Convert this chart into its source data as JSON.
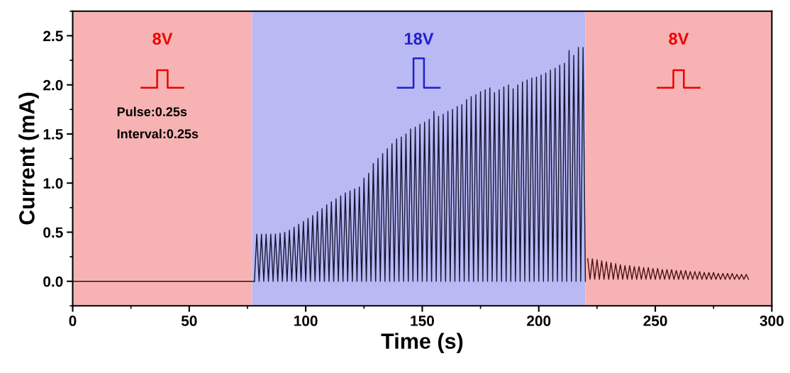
{
  "chart_data": {
    "type": "line",
    "xlabel": "Time (s)",
    "ylabel": "Current (mA)",
    "xlim": [
      0,
      300
    ],
    "xticks": [
      0,
      50,
      100,
      150,
      200,
      250,
      300
    ],
    "ylim": [
      -0.25,
      2.75
    ],
    "yticks": [
      {
        "value": 0,
        "label": "0.0"
      },
      0.5,
      {
        "value": 1,
        "label": "1.0"
      },
      1.5,
      {
        "value": 2,
        "label": "2.0"
      },
      2.5
    ],
    "grid": false,
    "legend": false,
    "marker": "none",
    "line_style": "solid",
    "bands": [
      {
        "axis": "x",
        "from": 0,
        "to": 77,
        "label": "8V",
        "color": "#f7b3b3"
      },
      {
        "axis": "x",
        "from": 77,
        "to": 220,
        "label": "18V",
        "color": "#b9b9f4"
      },
      {
        "axis": "x",
        "from": 220,
        "to": 300,
        "label": "8V",
        "color": "#f7b3b3"
      }
    ],
    "annotations": [
      "Pulse:0.25s",
      "Interval:0.25s"
    ],
    "series": [
      {
        "color": "#1a1a1a",
        "x": [
          0,
          78
        ],
        "values": [
          0,
          0
        ]
      },
      {
        "color": "#141432",
        "x": [
          78,
          79,
          80,
          81,
          82,
          83,
          84,
          85,
          86,
          87,
          88,
          89,
          90,
          91,
          92,
          93,
          94,
          95,
          96,
          97,
          98,
          99,
          100,
          101,
          102,
          103,
          104,
          105,
          106,
          107,
          108,
          109,
          110,
          111,
          112,
          113,
          114,
          115,
          116,
          117,
          118,
          119,
          120,
          121,
          122,
          123,
          124,
          125,
          126,
          127,
          128,
          129,
          130,
          131,
          132,
          133,
          134,
          135,
          136,
          137,
          138,
          139,
          140,
          141,
          142,
          143,
          144,
          145,
          146,
          147,
          148,
          149,
          150,
          151,
          152,
          153,
          154,
          155,
          156,
          157,
          158,
          159,
          160,
          161,
          162,
          163,
          164,
          165,
          166,
          167,
          168,
          169,
          170,
          171,
          172,
          173,
          174,
          175,
          176,
          177,
          178,
          179,
          180,
          181,
          182,
          183,
          184,
          185,
          186,
          187,
          188,
          189,
          190,
          191,
          192,
          193,
          194,
          195,
          196,
          197,
          198,
          199,
          200,
          201,
          202,
          203,
          204,
          205,
          206,
          207,
          208,
          209,
          210,
          211,
          212,
          213,
          214,
          215,
          216,
          217,
          218,
          219,
          220
        ],
        "values": [
          0,
          0.48,
          0,
          0.48,
          0,
          0.48,
          0,
          0.48,
          0,
          0.48,
          0,
          0.49,
          0,
          0.5,
          0,
          0.52,
          0,
          0.55,
          0,
          0.58,
          0,
          0.61,
          0,
          0.64,
          0,
          0.67,
          0,
          0.71,
          0,
          0.74,
          0,
          0.78,
          0,
          0.81,
          0,
          0.84,
          0,
          0.87,
          0,
          0.9,
          0,
          0.92,
          0,
          0.94,
          0,
          0.96,
          0,
          1.05,
          0,
          1.1,
          0,
          1.2,
          0,
          1.25,
          0,
          1.3,
          0,
          1.35,
          0,
          1.4,
          0,
          1.45,
          0,
          1.47,
          0,
          1.5,
          0,
          1.55,
          0,
          1.57,
          0,
          1.6,
          0,
          1.62,
          0,
          1.65,
          0,
          1.73,
          0,
          1.68,
          0,
          1.7,
          0,
          1.73,
          0,
          1.75,
          0,
          1.78,
          0,
          1.8,
          0,
          1.85,
          0,
          1.88,
          0,
          1.9,
          0,
          1.93,
          0,
          1.95,
          0,
          1.97,
          0,
          1.92,
          0,
          1.95,
          0,
          1.98,
          0,
          2.0,
          0,
          1.96,
          0,
          2.0,
          0,
          2.03,
          0,
          2.05,
          0,
          2.07,
          0,
          2.08,
          0,
          2.1,
          0,
          2.12,
          0,
          2.15,
          0,
          2.17,
          0,
          2.2,
          0,
          2.22,
          0,
          2.35,
          0,
          2.3,
          0,
          2.38,
          0,
          2.38,
          0
        ]
      },
      {
        "color": "#4a1010",
        "x": [
          221,
          222,
          223,
          224,
          225,
          226,
          227,
          228,
          229,
          230,
          231,
          232,
          233,
          234,
          235,
          236,
          237,
          238,
          239,
          240,
          241,
          242,
          243,
          244,
          245,
          246,
          247,
          248,
          249,
          250,
          251,
          252,
          253,
          254,
          255,
          256,
          257,
          258,
          259,
          260,
          261,
          262,
          263,
          264,
          265,
          266,
          267,
          268,
          269,
          270,
          271,
          272,
          273,
          274,
          275,
          276,
          277,
          278,
          279,
          280,
          281,
          282,
          283,
          284,
          285,
          286,
          287,
          288,
          289,
          290
        ],
        "values": [
          0.23,
          0.02,
          0.23,
          0.02,
          0.22,
          0.02,
          0.21,
          0.02,
          0.2,
          0.02,
          0.19,
          0.02,
          0.18,
          0.02,
          0.17,
          0.02,
          0.16,
          0.02,
          0.16,
          0.02,
          0.15,
          0.02,
          0.15,
          0.02,
          0.14,
          0.02,
          0.14,
          0.02,
          0.13,
          0.02,
          0.13,
          0.02,
          0.12,
          0.02,
          0.12,
          0.02,
          0.12,
          0.02,
          0.11,
          0.02,
          0.11,
          0.02,
          0.11,
          0.02,
          0.1,
          0.02,
          0.1,
          0.02,
          0.1,
          0.02,
          0.09,
          0.02,
          0.09,
          0.02,
          0.09,
          0.02,
          0.08,
          0.02,
          0.08,
          0.02,
          0.08,
          0.02,
          0.08,
          0.02,
          0.07,
          0.02,
          0.07,
          0.02,
          0.07,
          0.02
        ]
      }
    ]
  }
}
